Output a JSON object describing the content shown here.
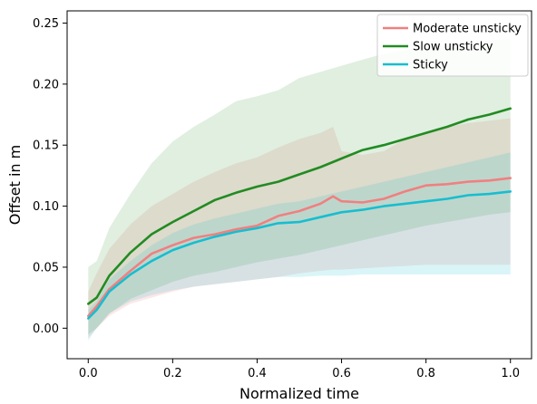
{
  "chart_data": {
    "type": "line",
    "xlabel": "Normalized time",
    "ylabel": "Offset in m",
    "xlim": [
      -0.05,
      1.05
    ],
    "ylim": [
      -0.025,
      0.26
    ],
    "xticks": [
      0.0,
      0.2,
      0.4,
      0.6,
      0.8,
      1.0
    ],
    "xtick_labels": [
      "0.0",
      "0.2",
      "0.4",
      "0.6",
      "0.8",
      "1.0"
    ],
    "yticks": [
      0.0,
      0.05,
      0.1,
      0.15,
      0.2,
      0.25
    ],
    "ytick_labels": [
      "0.00",
      "0.05",
      "0.10",
      "0.15",
      "0.20",
      "0.25"
    ],
    "grid": false,
    "legend_position": "top-right",
    "series": [
      {
        "name": "Moderate unsticky",
        "color": "#f08080",
        "x": [
          0.0,
          0.02,
          0.05,
          0.1,
          0.15,
          0.2,
          0.25,
          0.3,
          0.35,
          0.4,
          0.45,
          0.5,
          0.55,
          0.58,
          0.6,
          0.65,
          0.7,
          0.75,
          0.8,
          0.85,
          0.9,
          0.95,
          1.0
        ],
        "y": [
          0.01,
          0.018,
          0.032,
          0.047,
          0.061,
          0.068,
          0.074,
          0.077,
          0.081,
          0.084,
          0.092,
          0.096,
          0.102,
          0.108,
          0.104,
          0.103,
          0.106,
          0.112,
          0.117,
          0.118,
          0.12,
          0.121,
          0.123
        ],
        "lower": [
          -0.008,
          0.0,
          0.01,
          0.02,
          0.025,
          0.03,
          0.034,
          0.036,
          0.038,
          0.04,
          0.042,
          0.045,
          0.047,
          0.048,
          0.048,
          0.049,
          0.05,
          0.051,
          0.052,
          0.052,
          0.052,
          0.052,
          0.052
        ],
        "upper": [
          0.03,
          0.045,
          0.065,
          0.085,
          0.1,
          0.11,
          0.12,
          0.128,
          0.135,
          0.14,
          0.148,
          0.155,
          0.16,
          0.165,
          0.145,
          0.142,
          0.145,
          0.155,
          0.16,
          0.165,
          0.168,
          0.17,
          0.172
        ]
      },
      {
        "name": "Slow unsticky",
        "color": "#228b22",
        "x": [
          0.0,
          0.02,
          0.05,
          0.1,
          0.15,
          0.2,
          0.25,
          0.3,
          0.35,
          0.4,
          0.45,
          0.5,
          0.55,
          0.6,
          0.65,
          0.7,
          0.75,
          0.8,
          0.85,
          0.9,
          0.95,
          1.0
        ],
        "y": [
          0.02,
          0.025,
          0.043,
          0.062,
          0.077,
          0.087,
          0.096,
          0.105,
          0.111,
          0.116,
          0.12,
          0.126,
          0.132,
          0.139,
          0.146,
          0.15,
          0.155,
          0.16,
          0.165,
          0.171,
          0.175,
          0.18
        ],
        "lower": [
          -0.005,
          0.0,
          0.012,
          0.024,
          0.031,
          0.038,
          0.043,
          0.046,
          0.05,
          0.054,
          0.057,
          0.06,
          0.064,
          0.068,
          0.072,
          0.076,
          0.08,
          0.084,
          0.087,
          0.09,
          0.093,
          0.095
        ],
        "upper": [
          0.05,
          0.055,
          0.082,
          0.11,
          0.135,
          0.153,
          0.165,
          0.175,
          0.186,
          0.19,
          0.195,
          0.205,
          0.21,
          0.215,
          0.22,
          0.225,
          0.228,
          0.23,
          0.232,
          0.235,
          0.236,
          0.237
        ]
      },
      {
        "name": "Sticky",
        "color": "#17becf",
        "x": [
          0.0,
          0.02,
          0.05,
          0.1,
          0.15,
          0.2,
          0.25,
          0.3,
          0.35,
          0.4,
          0.45,
          0.5,
          0.55,
          0.6,
          0.65,
          0.7,
          0.75,
          0.8,
          0.85,
          0.9,
          0.95,
          1.0
        ],
        "y": [
          0.008,
          0.015,
          0.03,
          0.044,
          0.055,
          0.064,
          0.07,
          0.075,
          0.079,
          0.082,
          0.086,
          0.087,
          0.091,
          0.095,
          0.097,
          0.1,
          0.102,
          0.104,
          0.106,
          0.109,
          0.11,
          0.112
        ],
        "lower": [
          -0.01,
          0.0,
          0.012,
          0.022,
          0.027,
          0.031,
          0.034,
          0.036,
          0.038,
          0.04,
          0.042,
          0.042,
          0.043,
          0.043,
          0.044,
          0.044,
          0.044,
          0.044,
          0.044,
          0.044,
          0.044,
          0.044
        ],
        "upper": [
          0.015,
          0.022,
          0.04,
          0.055,
          0.068,
          0.078,
          0.085,
          0.09,
          0.094,
          0.098,
          0.102,
          0.104,
          0.108,
          0.112,
          0.116,
          0.12,
          0.124,
          0.128,
          0.132,
          0.136,
          0.14,
          0.144
        ]
      }
    ]
  }
}
